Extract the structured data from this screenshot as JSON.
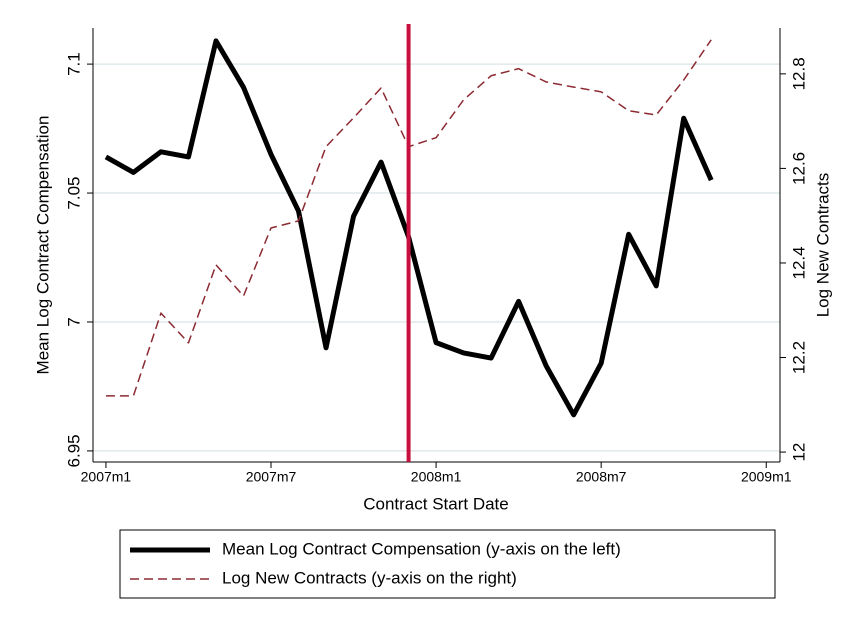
{
  "chart_data": {
    "type": "line",
    "x_label": "Contract Start Date",
    "y_label": "Mean Log Contract Compensation",
    "y2_label": "Log New Contracts",
    "x": [
      0,
      1,
      2,
      3,
      4,
      5,
      6,
      7,
      8,
      9,
      10,
      11,
      12,
      13,
      14,
      15,
      16,
      17,
      18,
      19,
      20,
      21,
      22
    ],
    "xlim": [
      -0.47,
      24.5
    ],
    "xticks": [
      {
        "value": 0,
        "label": "2007m1"
      },
      {
        "value": 6,
        "label": "2007m7"
      },
      {
        "value": 12,
        "label": "2008m1"
      },
      {
        "value": 18,
        "label": "2008m7"
      },
      {
        "value": 24,
        "label": "2009m1"
      }
    ],
    "ylim": [
      6.9457,
      7.114
    ],
    "yticks": [
      6.95,
      7,
      7.05,
      7.1
    ],
    "y2lim": [
      11.979,
      12.897
    ],
    "y2ticks": [
      12,
      12.2,
      12.4,
      12.6,
      12.8
    ],
    "grid": true,
    "vline": 11,
    "vline_color": "#c8103e",
    "series": [
      {
        "name": "Mean Log Contract Compensation (y-axis on the left)",
        "color": "#000000",
        "values": [
          7.064,
          7.058,
          7.066,
          7.064,
          7.109,
          7.091,
          7.065,
          7.043,
          6.99,
          7.041,
          7.062,
          7.033,
          6.992,
          6.988,
          6.986,
          7.008,
          6.983,
          6.964,
          6.984,
          7.034,
          7.014,
          7.079,
          7.055
        ]
      },
      {
        "name": "Log New Contracts (y-axis on the right)",
        "color": "#8c2a32",
        "axis": "y2",
        "dashed": true,
        "values": [
          12.119,
          12.119,
          12.294,
          12.231,
          12.396,
          12.33,
          12.474,
          12.489,
          12.646,
          12.707,
          12.77,
          12.646,
          12.665,
          12.745,
          12.796,
          12.811,
          12.783,
          12.772,
          12.762,
          12.722,
          12.713,
          12.787,
          12.872
        ]
      }
    ]
  }
}
